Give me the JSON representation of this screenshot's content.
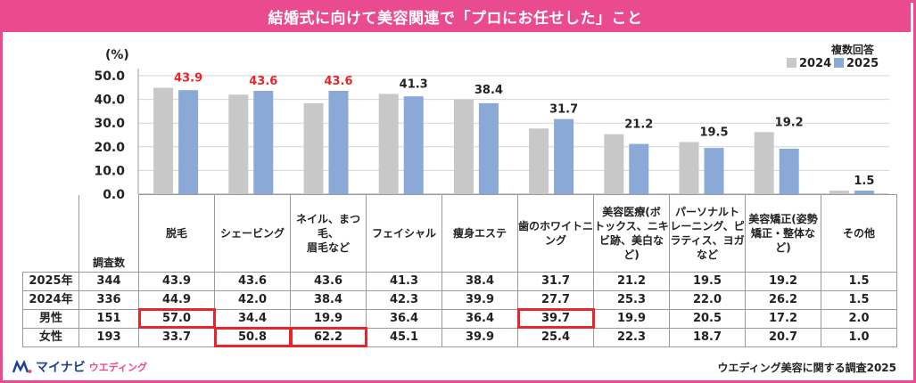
{
  "title": "結婚式に向けて美容関連で「プロにお任せした」こと",
  "note": "複数回答",
  "colors": {
    "accent": "#ea4a8e",
    "bar2024": "#c8c8c8",
    "bar2025": "#8aa9d6",
    "highlight_label": "#e8252b",
    "highlight_box": "#e8252b"
  },
  "chart_data": {
    "type": "bar",
    "ylabel": "(%)",
    "ylim": [
      0,
      50
    ],
    "yticks": [
      "0.0",
      "10.0",
      "20.0",
      "30.0",
      "40.0",
      "50.0"
    ],
    "grid": true,
    "legend": "top-right",
    "categories": [
      "脱毛",
      "シェービング",
      "ネイル、まつ毛、眉毛など",
      "フェイシャル",
      "痩身エステ",
      "歯のホワイトニング",
      "美容医療(ボトックス、ニキビ跡、美白など)",
      "パーソナルトレーニング、ピラティス、ヨガなど",
      "美容矯正(姿勢矯正・整体など)",
      "その他"
    ],
    "series": [
      {
        "name": "2024",
        "values": [
          44.9,
          42.0,
          38.4,
          42.3,
          39.9,
          27.7,
          25.3,
          22.0,
          26.2,
          1.5
        ]
      },
      {
        "name": "2025",
        "values": [
          43.9,
          43.6,
          43.6,
          41.3,
          38.4,
          31.7,
          21.2,
          19.5,
          19.2,
          1.5
        ]
      }
    ],
    "data_labels": [
      "43.9",
      "43.6",
      "43.6",
      "41.3",
      "38.4",
      "31.7",
      "21.2",
      "19.5",
      "19.2",
      "1.5"
    ],
    "highlighted_labels": [
      0,
      1,
      2
    ]
  },
  "table": {
    "header_lines": [
      [
        "脱毛"
      ],
      [
        "シェービング"
      ],
      [
        "ネイル、まつ毛、",
        "眉毛など"
      ],
      [
        "フェイシャル"
      ],
      [
        "痩身エステ"
      ],
      [
        "歯のホワイトニ",
        "ング"
      ],
      [
        "美容医療(ボ",
        "トックス、ニキ",
        "ビ跡、美白な",
        "ど)"
      ],
      [
        "パーソナルト",
        "レーニング、ピ",
        "ラティス、ヨガ",
        "など"
      ],
      [
        "美容矯正(姿勢",
        "矯正・整体な",
        "ど)"
      ],
      [
        "その他"
      ]
    ],
    "n_header": "調査数",
    "rows": [
      {
        "label": "2025年",
        "n": "344",
        "values": [
          "43.9",
          "43.6",
          "43.6",
          "41.3",
          "38.4",
          "31.7",
          "21.2",
          "19.5",
          "19.2",
          "1.5"
        ],
        "highlight": []
      },
      {
        "label": "2024年",
        "n": "336",
        "values": [
          "44.9",
          "42.0",
          "38.4",
          "42.3",
          "39.9",
          "27.7",
          "25.3",
          "22.0",
          "26.2",
          "1.5"
        ],
        "highlight": []
      },
      {
        "label": "男性",
        "n": "151",
        "values": [
          "57.0",
          "34.4",
          "19.9",
          "36.4",
          "36.4",
          "39.7",
          "19.9",
          "20.5",
          "17.2",
          "2.0"
        ],
        "highlight": [
          0,
          5
        ]
      },
      {
        "label": "女性",
        "n": "193",
        "values": [
          "33.7",
          "50.8",
          "62.2",
          "45.1",
          "39.9",
          "25.4",
          "22.3",
          "18.7",
          "20.7",
          "1.0"
        ],
        "highlight": [
          1,
          2
        ]
      }
    ]
  },
  "logo": {
    "brand": "マイナビ",
    "sub": "ウエディング"
  },
  "source": "ウエディング美容に関する調査2025"
}
